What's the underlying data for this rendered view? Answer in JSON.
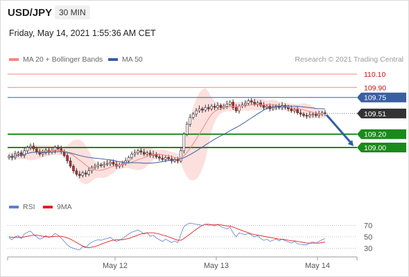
{
  "header": {
    "symbol": "USD/JPY",
    "timeframe": "30 MIN",
    "timestamp": "Friday, May 14, 2021 1:55:36 AM CET"
  },
  "legend": {
    "items": [
      {
        "label": "MA 20 + Bollinger Bands",
        "color": "#f4877f"
      },
      {
        "label": "MA 50",
        "color": "#3a5fa0"
      }
    ],
    "credit": "Research © 2021 Trading Central"
  },
  "rsi_legend": {
    "items": [
      {
        "label": "RSI",
        "color": "#5b7fd4"
      },
      {
        "label": "9MA",
        "color": "#e02020"
      }
    ]
  },
  "chart_data": [
    {
      "type": "line",
      "title": "USD/JPY",
      "xlabel": "",
      "ylabel": "",
      "ylim": [
        108.6,
        110.2
      ],
      "x_ticks": [
        "May 12",
        "May 13",
        "May 14"
      ],
      "levels": [
        {
          "value": 110.1,
          "label": "110.10",
          "color": "#f4877f",
          "text_color": "#cc1111",
          "style": "resistance"
        },
        {
          "value": 109.9,
          "label": "109.90",
          "color": "#f4877f",
          "text_color": "#cc1111",
          "style": "resistance"
        },
        {
          "value": 109.75,
          "label": "109.75",
          "color": "#3a5fa0",
          "text_color": "#ffffff",
          "style": "badge-blue"
        },
        {
          "value": 109.51,
          "label": "109.51",
          "color": "#333333",
          "text_color": "#ffffff",
          "style": "current"
        },
        {
          "value": 109.2,
          "label": "109.20",
          "color": "#1a8a1a",
          "text_color": "#ffffff",
          "style": "badge-green"
        },
        {
          "value": 109.0,
          "label": "109.00",
          "color": "#1a8a1a",
          "text_color": "#ffffff",
          "style": "badge-green"
        }
      ],
      "close_series": [
        108.87,
        108.85,
        108.9,
        108.92,
        108.88,
        108.95,
        109.0,
        109.02,
        108.98,
        108.94,
        108.9,
        108.92,
        108.96,
        108.93,
        108.95,
        109.0,
        108.98,
        108.94,
        108.88,
        108.8,
        108.72,
        108.65,
        108.6,
        108.58,
        108.62,
        108.6,
        108.65,
        108.7,
        108.72,
        108.74,
        108.73,
        108.75,
        108.76,
        108.78,
        108.75,
        108.72,
        108.74,
        108.76,
        108.8,
        108.85,
        108.9,
        108.92,
        108.95,
        108.93,
        108.9,
        108.92,
        108.88,
        108.9,
        108.86,
        108.84,
        108.82,
        108.85,
        108.83,
        108.8,
        108.82,
        108.8,
        108.95,
        109.2,
        109.35,
        109.45,
        109.5,
        109.55,
        109.58,
        109.56,
        109.6,
        109.58,
        109.62,
        109.6,
        109.63,
        109.6,
        109.62,
        109.65,
        109.68,
        109.6,
        109.55,
        109.62,
        109.64,
        109.66,
        109.7,
        109.68,
        109.65,
        109.67,
        109.63,
        109.6,
        109.62,
        109.58,
        109.6,
        109.62,
        109.6,
        109.63,
        109.6,
        109.58,
        109.55,
        109.57,
        109.52,
        109.5,
        109.48,
        109.47,
        109.49,
        109.5,
        109.48,
        109.5,
        109.52,
        109.51
      ],
      "forecast_target": 109.0,
      "rsi": {
        "ylim": [
          20,
          80
        ],
        "levels": [
          70,
          50,
          30
        ],
        "rsi_series": [
          48,
          45,
          50,
          52,
          47,
          55,
          58,
          60,
          54,
          50,
          46,
          48,
          52,
          49,
          51,
          56,
          53,
          48,
          42,
          36,
          32,
          30,
          28,
          27,
          33,
          31,
          37,
          41,
          43,
          45,
          44,
          46,
          47,
          49,
          45,
          42,
          44,
          47,
          51,
          55,
          58,
          60,
          62,
          59,
          55,
          57,
          51,
          53,
          48,
          45,
          42,
          46,
          43,
          40,
          43,
          40,
          55,
          68,
          72,
          74,
          73,
          72,
          71,
          70,
          72,
          70,
          71,
          69,
          72,
          68,
          66,
          64,
          67,
          57,
          50,
          57,
          55,
          54,
          56,
          53,
          50,
          52,
          47,
          44,
          46,
          42,
          44,
          46,
          43,
          46,
          43,
          41,
          39,
          42,
          38,
          37,
          36,
          36,
          39,
          41,
          39,
          42,
          45,
          47
        ],
        "ma_series": [
          50,
          49,
          49,
          49,
          49,
          50,
          51,
          52,
          53,
          53,
          52,
          51,
          50,
          50,
          50,
          51,
          51,
          51,
          50,
          48,
          46,
          43,
          40,
          37,
          34,
          32,
          31,
          32,
          33,
          35,
          37,
          39,
          41,
          43,
          44,
          45,
          45,
          45,
          46,
          47,
          49,
          51,
          53,
          55,
          56,
          57,
          57,
          57,
          56,
          55,
          53,
          52,
          50,
          48,
          46,
          44,
          44,
          47,
          51,
          55,
          59,
          63,
          67,
          70,
          72,
          72,
          71,
          71,
          71,
          71,
          70,
          69,
          69,
          67,
          65,
          63,
          61,
          59,
          57,
          55,
          54,
          53,
          52,
          51,
          50,
          49,
          48,
          47,
          46,
          46,
          45,
          44,
          43,
          43,
          42,
          41,
          40,
          39,
          39,
          39,
          39,
          39,
          40,
          41
        ]
      }
    }
  ]
}
